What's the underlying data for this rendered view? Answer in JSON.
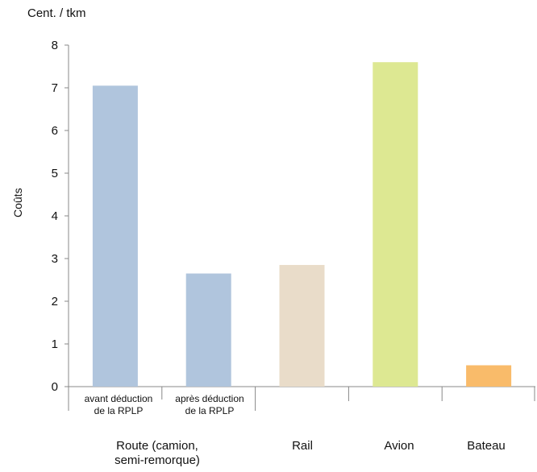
{
  "chart_data": {
    "type": "bar",
    "unit_label": "Cent. / tkm",
    "ylabel": "Coûts",
    "xlabel": "",
    "ylim": [
      0,
      8
    ],
    "yticks": [
      "0",
      "1",
      "2",
      "3",
      "4",
      "5",
      "6",
      "7",
      "8"
    ],
    "grid": false,
    "bars": [
      {
        "label": "avant déduction de la RPLP",
        "group": "Route (camion, semi-remorque)",
        "value": 7.05,
        "color": "#b0c5dd"
      },
      {
        "label": "après déduction de la RPLP",
        "group": "Route (camion, semi-remorque)",
        "value": 2.65,
        "color": "#b0c5dd"
      },
      {
        "label": "",
        "group": "Rail",
        "value": 2.85,
        "color": "#e9dcc9"
      },
      {
        "label": "",
        "group": "Avion",
        "value": 7.6,
        "color": "#dde892"
      },
      {
        "label": "",
        "group": "Bateau",
        "value": 0.5,
        "color": "#f9bb6a"
      }
    ],
    "sub_labels": [
      {
        "line1": "avant déduction",
        "line2": "de la RPLP"
      },
      {
        "line1": "après déduction",
        "line2": "de la RPLP"
      }
    ],
    "groups": [
      {
        "line1": "Route (camion,",
        "line2": "semi-remorque)"
      },
      {
        "line1": "Rail",
        "line2": ""
      },
      {
        "line1": "Avion",
        "line2": ""
      },
      {
        "line1": "Bateau",
        "line2": ""
      }
    ]
  }
}
